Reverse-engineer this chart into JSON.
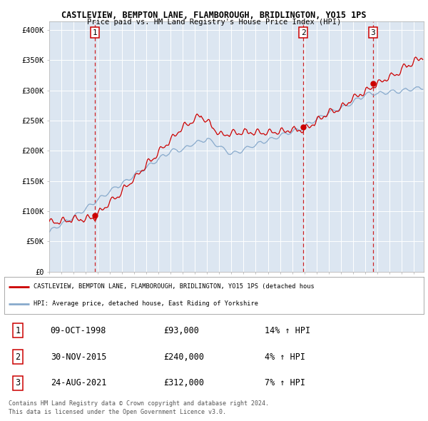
{
  "title1": "CASTLEVIEW, BEMPTON LANE, FLAMBOROUGH, BRIDLINGTON, YO15 1PS",
  "title2": "Price paid vs. HM Land Registry's House Price Index (HPI)",
  "plot_bg": "#dce6f1",
  "ylabel_ticks": [
    "£0",
    "£50K",
    "£100K",
    "£150K",
    "£200K",
    "£250K",
    "£300K",
    "£350K",
    "£400K"
  ],
  "ytick_vals": [
    0,
    50000,
    100000,
    150000,
    200000,
    250000,
    300000,
    350000,
    400000
  ],
  "ylim": [
    0,
    415000
  ],
  "xlim_start": 1995.0,
  "xlim_end": 2025.83,
  "sale_dates": [
    1998.77,
    2015.92,
    2021.65
  ],
  "sale_prices": [
    93000,
    240000,
    312000
  ],
  "sale_labels": [
    "1",
    "2",
    "3"
  ],
  "legend_label_red": "CASTLEVIEW, BEMPTON LANE, FLAMBOROUGH, BRIDLINGTON, YO15 1PS (detached hous",
  "legend_label_blue": "HPI: Average price, detached house, East Riding of Yorkshire",
  "table_rows": [
    [
      "1",
      "09-OCT-1998",
      "£93,000",
      "14% ↑ HPI"
    ],
    [
      "2",
      "30-NOV-2015",
      "£240,000",
      "4% ↑ HPI"
    ],
    [
      "3",
      "24-AUG-2021",
      "£312,000",
      "7% ↑ HPI"
    ]
  ],
  "footnote1": "Contains HM Land Registry data © Crown copyright and database right 2024.",
  "footnote2": "This data is licensed under the Open Government Licence v3.0.",
  "red_color": "#cc0000",
  "blue_color": "#88aacc",
  "dashed_color": "#cc0000"
}
